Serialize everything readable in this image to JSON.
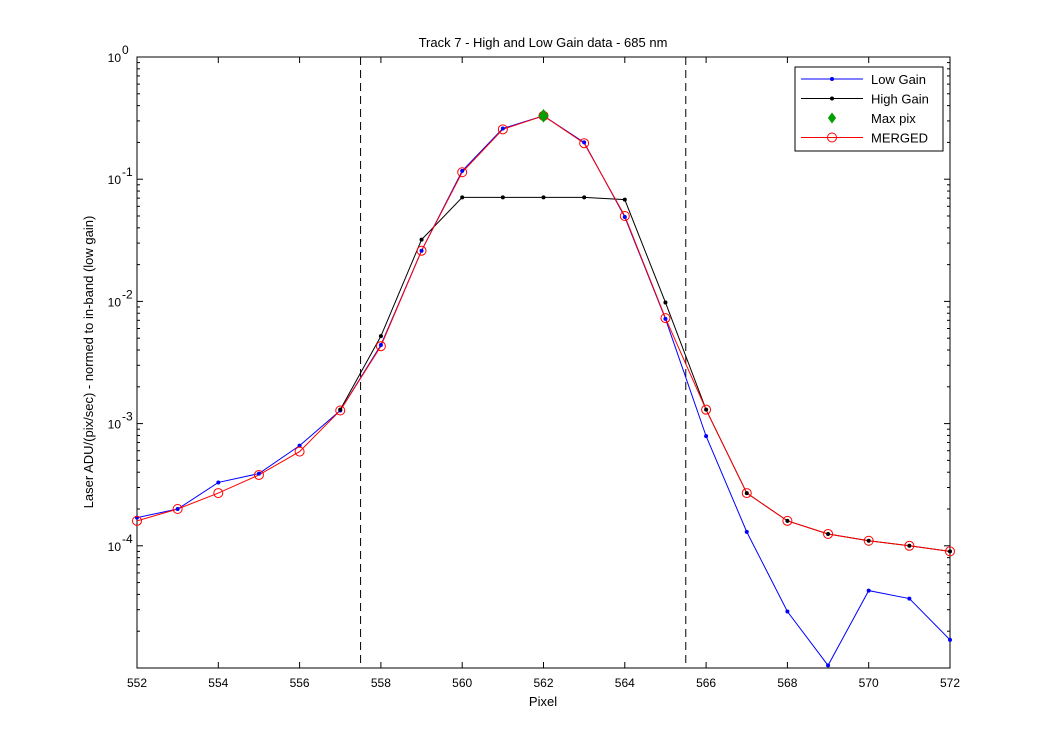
{
  "chart_data": {
    "type": "line",
    "title": "Track 7 - High and Low Gain data - 685 nm",
    "xlabel": "Pixel",
    "ylabel": "Laser ADU/(pix/sec) - normed to in-band (low gain)",
    "xlim": [
      552,
      572
    ],
    "ylim": [
      1e-05,
      1
    ],
    "yscale": "log",
    "grid": false,
    "legend_position": "top-right",
    "x_ticks": [
      "552",
      "554",
      "556",
      "558",
      "560",
      "562",
      "564",
      "566",
      "568",
      "570",
      "572"
    ],
    "y_ticks": [
      {
        "base": "10",
        "exp": "0"
      },
      {
        "base": "10",
        "exp": "-1"
      },
      {
        "base": "10",
        "exp": "-2"
      },
      {
        "base": "10",
        "exp": "-3"
      },
      {
        "base": "10",
        "exp": "-4"
      }
    ],
    "vertical_lines": [
      557.5,
      565.5
    ],
    "series": [
      {
        "name": "Low Gain",
        "color": "#0000ff",
        "marker": "dot",
        "x": [
          552,
          553,
          554,
          555,
          556,
          557,
          558,
          559,
          560,
          561,
          562,
          563,
          564,
          565,
          566,
          567,
          568,
          569,
          570,
          571,
          572
        ],
        "y": [
          0.00017,
          0.0002,
          0.00033,
          0.00039,
          0.00066,
          0.00128,
          0.0044,
          0.026,
          0.117,
          0.26,
          0.33,
          0.2,
          0.049,
          0.0072,
          0.00079,
          0.00013,
          2.9e-05,
          1.05e-05,
          4.3e-05,
          3.7e-05,
          1.7e-05
        ]
      },
      {
        "name": "High Gain",
        "color": "#000000",
        "marker": "dot",
        "x": [
          557,
          558,
          559,
          560,
          561,
          562,
          563,
          564,
          565,
          566,
          567,
          568,
          569,
          570,
          571,
          572
        ],
        "y": [
          0.0013,
          0.0052,
          0.032,
          0.071,
          0.071,
          0.071,
          0.071,
          0.068,
          0.0098,
          0.0013,
          0.00027,
          0.00016,
          0.000125,
          0.00011,
          0.0001,
          9e-05
        ]
      },
      {
        "name": "Max pix",
        "color": "#00a000",
        "marker": "diamond",
        "x": [
          562
        ],
        "y": [
          0.33
        ]
      },
      {
        "name": "MERGED",
        "color": "#ff0000",
        "marker": "circle",
        "x": [
          552,
          553,
          554,
          555,
          556,
          557,
          558,
          559,
          560,
          561,
          562,
          563,
          564,
          565,
          566,
          567,
          568,
          569,
          570,
          571,
          572
        ],
        "y": [
          0.00016,
          0.0002,
          0.00027,
          0.00038,
          0.00059,
          0.00128,
          0.0043,
          0.026,
          0.114,
          0.256,
          0.33,
          0.197,
          0.05,
          0.0073,
          0.0013,
          0.00027,
          0.00016,
          0.000125,
          0.00011,
          0.0001,
          9e-05
        ]
      }
    ]
  }
}
